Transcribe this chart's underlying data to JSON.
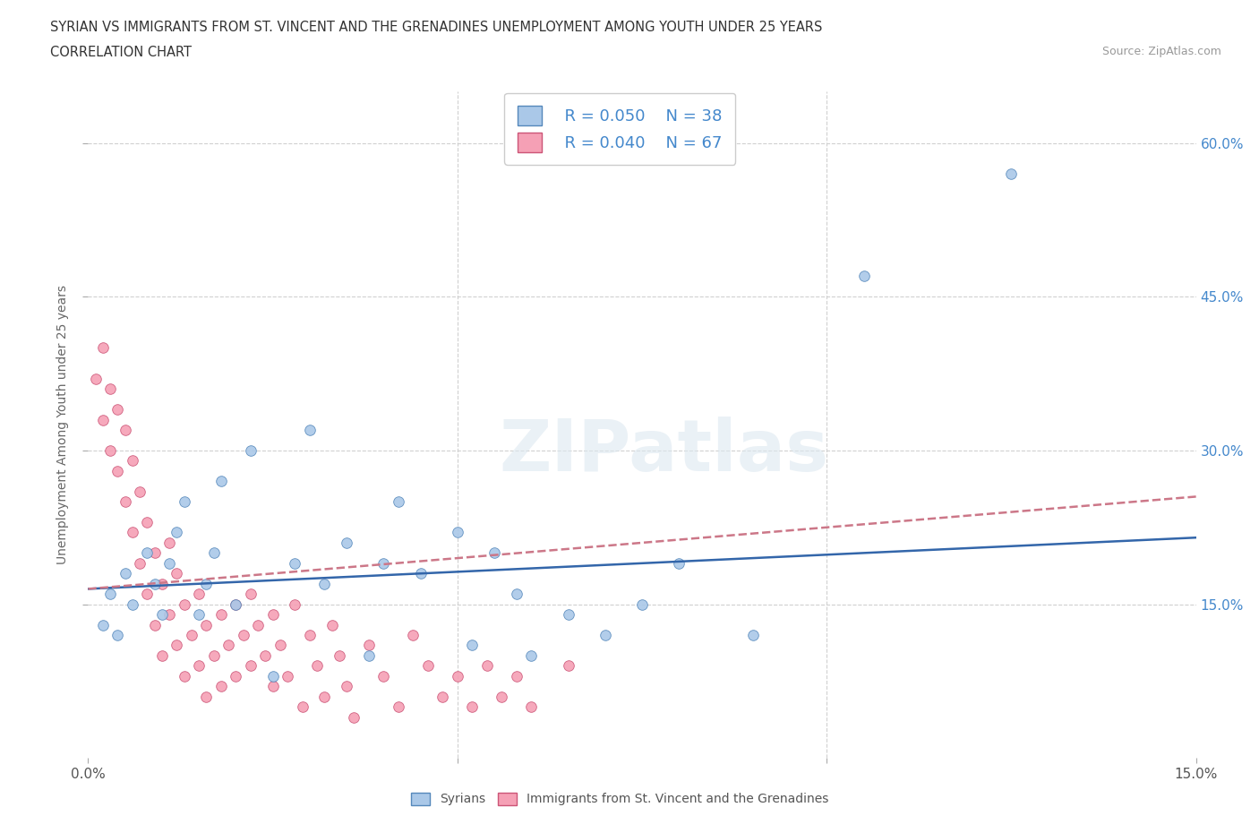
{
  "title_line1": "SYRIAN VS IMMIGRANTS FROM ST. VINCENT AND THE GRENADINES UNEMPLOYMENT AMONG YOUTH UNDER 25 YEARS",
  "title_line2": "CORRELATION CHART",
  "source": "Source: ZipAtlas.com",
  "ylabel": "Unemployment Among Youth under 25 years",
  "xlim": [
    0.0,
    0.15
  ],
  "ylim": [
    0.0,
    0.65
  ],
  "ytick_positions": [
    0.15,
    0.3,
    0.45,
    0.6
  ],
  "ytick_labels": [
    "15.0%",
    "30.0%",
    "45.0%",
    "60.0%"
  ],
  "xtick_positions": [
    0.0,
    0.05,
    0.1,
    0.15
  ],
  "xticklabels": [
    "0.0%",
    "",
    "",
    "15.0%"
  ],
  "grid_color": "#d0d0d0",
  "background_color": "#ffffff",
  "syrian_color": "#aac8e8",
  "svg_color": "#f5a0b5",
  "syrian_edge_color": "#5588bb",
  "svg_edge_color": "#cc5577",
  "legend_R_syrian": "R = 0.050",
  "legend_N_syrian": "N = 38",
  "legend_R_svg": "R = 0.040",
  "legend_N_svg": "N = 67",
  "trend_color_syrian": "#3366aa",
  "trend_color_svg": "#cc7788",
  "watermark": "ZIPatlas",
  "tick_color": "#4488cc",
  "syrians_x": [
    0.002,
    0.003,
    0.004,
    0.005,
    0.006,
    0.008,
    0.009,
    0.01,
    0.011,
    0.012,
    0.013,
    0.015,
    0.016,
    0.017,
    0.018,
    0.02,
    0.022,
    0.025,
    0.028,
    0.03,
    0.032,
    0.035,
    0.038,
    0.04,
    0.042,
    0.045,
    0.05,
    0.052,
    0.055,
    0.058,
    0.06,
    0.065,
    0.07,
    0.075,
    0.08,
    0.09,
    0.105,
    0.125
  ],
  "syrians_y": [
    0.13,
    0.16,
    0.12,
    0.18,
    0.15,
    0.2,
    0.17,
    0.14,
    0.19,
    0.22,
    0.25,
    0.14,
    0.17,
    0.2,
    0.27,
    0.15,
    0.3,
    0.08,
    0.19,
    0.32,
    0.17,
    0.21,
    0.1,
    0.19,
    0.25,
    0.18,
    0.22,
    0.11,
    0.2,
    0.16,
    0.1,
    0.14,
    0.12,
    0.15,
    0.19,
    0.12,
    0.47,
    0.57
  ],
  "svg_x": [
    0.001,
    0.002,
    0.002,
    0.003,
    0.003,
    0.004,
    0.004,
    0.005,
    0.005,
    0.006,
    0.006,
    0.007,
    0.007,
    0.008,
    0.008,
    0.009,
    0.009,
    0.01,
    0.01,
    0.011,
    0.011,
    0.012,
    0.012,
    0.013,
    0.013,
    0.014,
    0.015,
    0.015,
    0.016,
    0.016,
    0.017,
    0.018,
    0.018,
    0.019,
    0.02,
    0.02,
    0.021,
    0.022,
    0.022,
    0.023,
    0.024,
    0.025,
    0.025,
    0.026,
    0.027,
    0.028,
    0.029,
    0.03,
    0.031,
    0.032,
    0.033,
    0.034,
    0.035,
    0.036,
    0.038,
    0.04,
    0.042,
    0.044,
    0.046,
    0.048,
    0.05,
    0.052,
    0.054,
    0.056,
    0.058,
    0.06,
    0.065
  ],
  "svg_y": [
    0.37,
    0.33,
    0.4,
    0.3,
    0.36,
    0.28,
    0.34,
    0.25,
    0.32,
    0.22,
    0.29,
    0.19,
    0.26,
    0.16,
    0.23,
    0.13,
    0.2,
    0.1,
    0.17,
    0.14,
    0.21,
    0.11,
    0.18,
    0.08,
    0.15,
    0.12,
    0.09,
    0.16,
    0.06,
    0.13,
    0.1,
    0.07,
    0.14,
    0.11,
    0.08,
    0.15,
    0.12,
    0.09,
    0.16,
    0.13,
    0.1,
    0.07,
    0.14,
    0.11,
    0.08,
    0.15,
    0.05,
    0.12,
    0.09,
    0.06,
    0.13,
    0.1,
    0.07,
    0.04,
    0.11,
    0.08,
    0.05,
    0.12,
    0.09,
    0.06,
    0.08,
    0.05,
    0.09,
    0.06,
    0.08,
    0.05,
    0.09
  ],
  "syrian_trend_x": [
    0.0,
    0.15
  ],
  "syrian_trend_y": [
    0.165,
    0.215
  ],
  "svg_trend_x": [
    0.0,
    0.15
  ],
  "svg_trend_y": [
    0.165,
    0.255
  ]
}
